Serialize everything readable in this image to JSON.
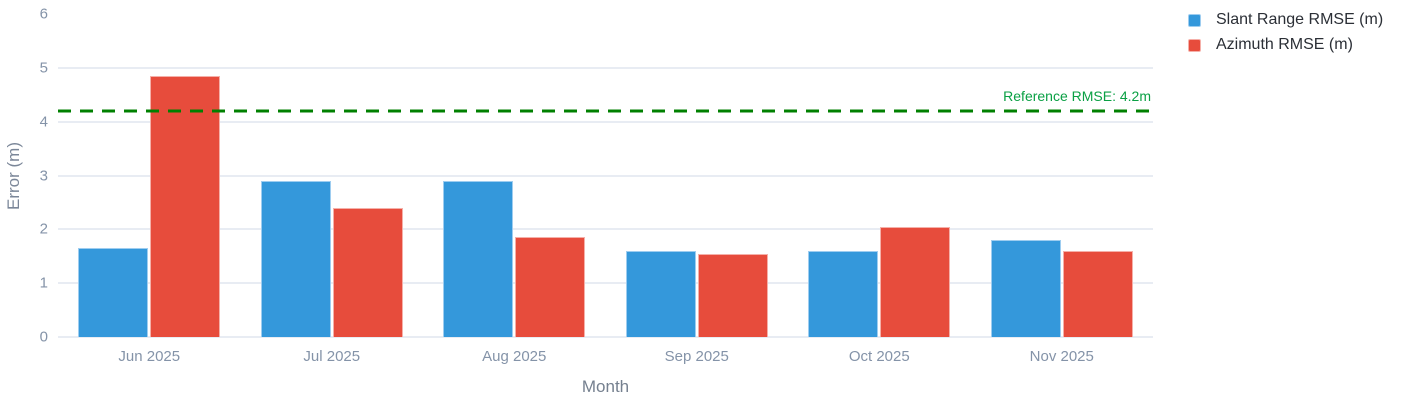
{
  "chart_data": {
    "type": "bar",
    "title": "",
    "xlabel": "Month",
    "ylabel": "Error (m)",
    "ylim": [
      0,
      6
    ],
    "ytick_labels": [
      "0",
      "1",
      "2",
      "3",
      "4",
      "5",
      "6"
    ],
    "grid_ticks": [
      0,
      1,
      2,
      3,
      4,
      5
    ],
    "grid": true,
    "legend_position": "outside-top-right",
    "categories": [
      "Jun 2025",
      "Jul 2025",
      "Aug 2025",
      "Sep 2025",
      "Oct 2025",
      "Nov 2025"
    ],
    "series": [
      {
        "name": "Slant Range RMSE (m)",
        "color": "#3498db",
        "edge_color": "#9ecdf0",
        "values": [
          1.65,
          2.9,
          2.9,
          1.6,
          1.6,
          1.8
        ]
      },
      {
        "name": "Azimuth RMSE (m)",
        "color": "#e74c3c",
        "edge_color": "#f5b0a9",
        "values": [
          4.85,
          2.4,
          1.85,
          1.55,
          2.05,
          1.6
        ]
      }
    ],
    "reference_line": {
      "value": 4.2,
      "label": "Reference RMSE: 4.2m",
      "line_color": "#008000",
      "label_color": "#0aa044",
      "style": "dashed"
    }
  },
  "colors": {
    "background": "#ffffff",
    "gridline": "#e8ecf3",
    "axis_text": "#8493a8",
    "axis_title": "#7a8698",
    "legend_text": "#2b2f36"
  }
}
